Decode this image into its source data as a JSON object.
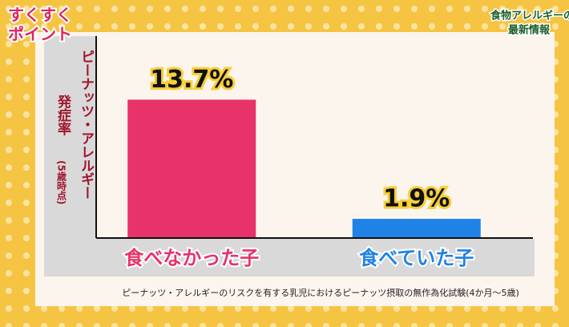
{
  "overlay": {
    "badge": [
      "すくすく",
      "ポイント"
    ],
    "corner_title": [
      "食物アレルギーの",
      "最新情報"
    ]
  },
  "chart_data": {
    "type": "bar",
    "ylabel": [
      "ピーナッツ・アレルギー",
      "発症率",
      "(5歳時点)"
    ],
    "categories": [
      "食べなかった子",
      "食べていた子"
    ],
    "values": [
      13.7,
      1.9
    ],
    "value_labels": [
      "13.7%",
      "1.9%"
    ],
    "colors": [
      "#e8336a",
      "#1f82e6"
    ],
    "ylim": [
      0,
      20
    ],
    "note": "ピーナッツ・アレルギーのリスクを有する乳児におけるピーナッツ摂取の無作為化試験(4か月〜5歳)"
  }
}
